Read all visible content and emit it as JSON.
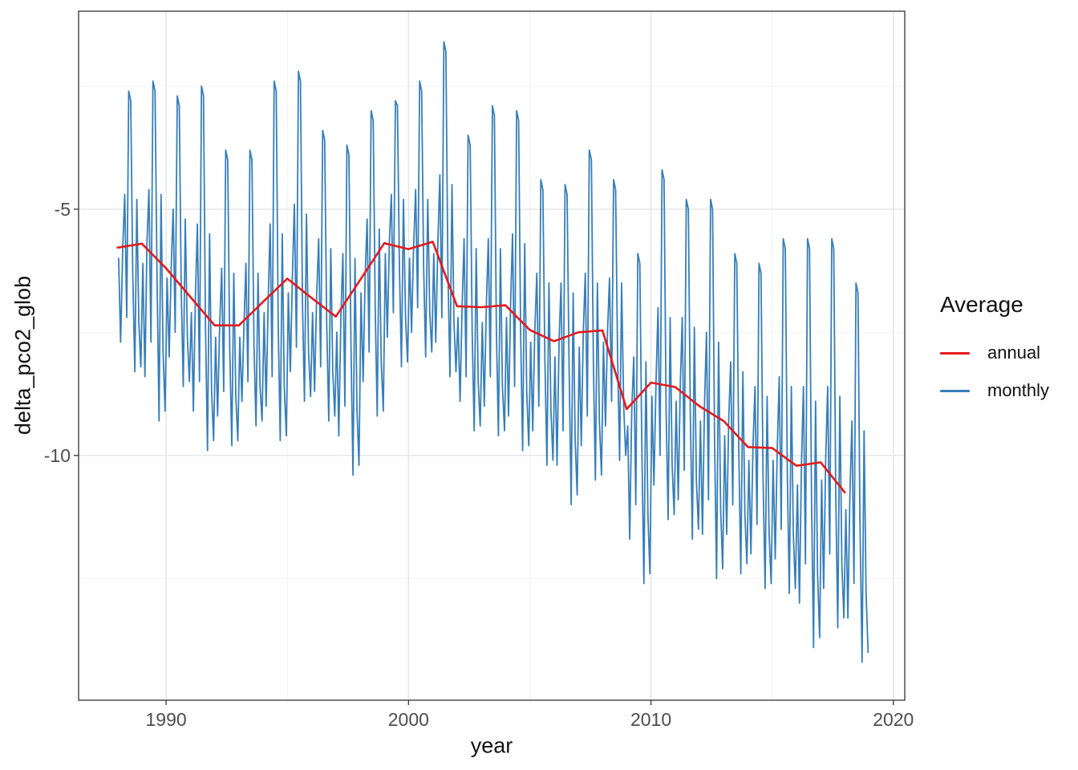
{
  "figure_background": "#FFFFFF",
  "axis_titles": {
    "x": "year",
    "y": "delta_pco2_glob"
  },
  "legend": {
    "title": "Average",
    "items": [
      {
        "label": "annual",
        "color": "#E41A1C"
      },
      {
        "label": "monthly",
        "color": "#377EB8"
      }
    ]
  },
  "colors": {
    "grid_major": "#E4E4E4",
    "grid_minor": "#F1F1F1",
    "panel_border": "#333333",
    "tick_mark": "#333333",
    "tick_label": "#4D4D4D",
    "annual_line": "#E41A1C",
    "monthly_line": "#377EB8"
  },
  "chart_data": {
    "type": "line",
    "title": "",
    "xlabel": "year",
    "ylabel": "delta_pco2_glob",
    "xlim": [
      1986.39,
      2020.47
    ],
    "ylim": [
      -14.97,
      -0.98
    ],
    "grid": "on",
    "legend_position": "right",
    "x_axis": {
      "major_ticks": [
        1990,
        2000,
        2010,
        2020
      ],
      "tick_labels": [
        "1990",
        "2000",
        "2010",
        "2020"
      ],
      "minor_gridlines": [
        1995,
        2005,
        2015
      ]
    },
    "y_axis": {
      "major_ticks": [
        -5,
        -10
      ],
      "tick_labels": [
        "-5",
        "-10"
      ],
      "minor_gridlines": [
        -2.5,
        -7.5,
        -12.5
      ]
    },
    "series": [
      {
        "name": "annual",
        "color": "#E41A1C",
        "line_width": 2.6,
        "years": [
          1988,
          1989,
          1990,
          1991,
          1992,
          1993,
          1994,
          1995,
          1996,
          1997,
          1998,
          1999,
          2000,
          2001,
          2002,
          2003,
          2004,
          2005,
          2006,
          2007,
          2008,
          2009,
          2010,
          2011,
          2012,
          2013,
          2014,
          2015,
          2016,
          2017,
          2018
        ],
        "values": [
          -5.78,
          -5.7,
          -6.2,
          -6.78,
          -7.36,
          -7.36,
          -6.88,
          -6.41,
          -6.8,
          -7.18,
          -6.44,
          -5.69,
          -5.81,
          -5.66,
          -6.97,
          -6.99,
          -6.95,
          -7.45,
          -7.68,
          -7.5,
          -7.46,
          -9.06,
          -8.52,
          -8.61,
          -9.0,
          -9.3,
          -9.83,
          -9.85,
          -10.21,
          -10.14,
          -10.75
        ]
      },
      {
        "name": "monthly",
        "color": "#377EB8",
        "line_width": 1.8,
        "months_per_year": 12,
        "monthly_by_year": {
          "1988": [
            -6.0,
            -7.7,
            -5.8,
            -4.7,
            -7.2,
            -2.6,
            -2.8,
            -6.3,
            -8.3,
            -4.8,
            -7.3,
            -8.2
          ],
          "1989": [
            -6.1,
            -8.4,
            -5.7,
            -4.6,
            -7.7,
            -2.4,
            -2.6,
            -6.4,
            -9.3,
            -4.7,
            -7.9,
            -9.1
          ],
          "1990": [
            -6.4,
            -8.0,
            -6.2,
            -5.0,
            -7.5,
            -2.7,
            -2.9,
            -6.7,
            -8.6,
            -5.2,
            -7.6,
            -8.5
          ],
          "1991": [
            -7.1,
            -9.1,
            -6.8,
            -5.3,
            -8.5,
            -2.5,
            -2.7,
            -7.4,
            -9.9,
            -5.5,
            -8.7,
            -9.7
          ],
          "1992": [
            -7.6,
            -9.2,
            -7.4,
            -6.2,
            -8.7,
            -3.8,
            -4.0,
            -7.8,
            -9.8,
            -6.3,
            -8.8,
            -9.7
          ],
          "1993": [
            -7.6,
            -8.9,
            -7.4,
            -6.1,
            -8.5,
            -3.8,
            -4.0,
            -7.8,
            -9.4,
            -6.3,
            -8.6,
            -9.3
          ],
          "1994": [
            -7.1,
            -9.0,
            -6.9,
            -5.3,
            -8.4,
            -2.4,
            -2.6,
            -7.4,
            -9.7,
            -5.5,
            -8.6,
            -9.6
          ],
          "1995": [
            -6.7,
            -8.3,
            -6.4,
            -4.9,
            -7.8,
            -2.2,
            -2.4,
            -6.9,
            -8.9,
            -5.1,
            -7.9,
            -8.8
          ],
          "1996": [
            -7.1,
            -8.7,
            -6.8,
            -5.6,
            -8.2,
            -3.4,
            -3.6,
            -7.3,
            -9.3,
            -5.8,
            -8.3,
            -9.2
          ],
          "1997": [
            -7.5,
            -9.6,
            -7.2,
            -5.9,
            -9.0,
            -3.7,
            -3.9,
            -7.8,
            -10.4,
            -6.0,
            -9.1,
            -10.2
          ],
          "1998": [
            -6.7,
            -8.5,
            -6.4,
            -5.2,
            -7.9,
            -3.0,
            -3.2,
            -7.0,
            -9.2,
            -5.4,
            -8.1,
            -9.1
          ],
          "1999": [
            -5.9,
            -7.6,
            -5.7,
            -4.7,
            -7.1,
            -2.8,
            -2.9,
            -6.2,
            -8.2,
            -4.8,
            -7.2,
            -8.1
          ],
          "2000": [
            -6.0,
            -7.5,
            -5.8,
            -4.6,
            -7.0,
            -2.4,
            -2.6,
            -6.2,
            -8.0,
            -4.8,
            -7.1,
            -7.9
          ],
          "2001": [
            -5.9,
            -7.7,
            -5.7,
            -4.3,
            -7.2,
            -1.6,
            -1.8,
            -6.2,
            -8.4,
            -4.5,
            -7.3,
            -8.3
          ],
          "2002": [
            -7.2,
            -8.9,
            -7.0,
            -5.6,
            -8.4,
            -3.5,
            -3.7,
            -7.5,
            -9.5,
            -5.8,
            -8.5,
            -9.4
          ],
          "2003": [
            -7.3,
            -9.0,
            -7.0,
            -5.6,
            -8.4,
            -2.9,
            -3.1,
            -7.5,
            -9.6,
            -5.8,
            -8.6,
            -9.5
          ],
          "2004": [
            -7.2,
            -9.2,
            -7.0,
            -5.5,
            -8.6,
            -3.0,
            -3.2,
            -7.5,
            -9.9,
            -5.7,
            -8.7,
            -9.8
          ],
          "2005": [
            -7.7,
            -9.5,
            -7.5,
            -6.3,
            -9.0,
            -4.4,
            -4.6,
            -8.0,
            -10.2,
            -6.5,
            -9.1,
            -10.1
          ],
          "2006": [
            -8.0,
            -10.2,
            -7.7,
            -6.5,
            -9.5,
            -4.5,
            -4.7,
            -8.3,
            -11.0,
            -6.7,
            -9.7,
            -10.8
          ],
          "2007": [
            -7.8,
            -9.8,
            -7.5,
            -6.3,
            -9.2,
            -3.8,
            -4.0,
            -8.1,
            -10.5,
            -6.5,
            -9.3,
            -10.4
          ],
          "2008": [
            -7.7,
            -9.4,
            -7.5,
            -6.4,
            -8.9,
            -4.4,
            -4.6,
            -8.0,
            -10.1,
            -6.5,
            -9.0,
            -10.0
          ],
          "2009": [
            -9.4,
            -11.7,
            -9.1,
            -8.0,
            -11.0,
            -5.9,
            -6.1,
            -9.8,
            -12.6,
            -8.1,
            -11.2,
            -12.4
          ],
          "2010": [
            -8.8,
            -10.6,
            -8.5,
            -7.0,
            -10.0,
            -4.2,
            -4.4,
            -9.1,
            -11.3,
            -7.2,
            -10.2,
            -11.2
          ],
          "2011": [
            -8.9,
            -10.9,
            -8.6,
            -7.2,
            -10.3,
            -4.8,
            -5.0,
            -9.2,
            -11.7,
            -7.4,
            -10.5,
            -11.5
          ],
          "2012": [
            -9.3,
            -11.6,
            -9.0,
            -7.5,
            -10.9,
            -4.8,
            -5.0,
            -9.7,
            -12.5,
            -7.7,
            -11.1,
            -12.3
          ],
          "2013": [
            -9.6,
            -11.6,
            -9.3,
            -8.1,
            -11.0,
            -5.9,
            -6.1,
            -9.9,
            -12.4,
            -8.3,
            -11.2,
            -12.2
          ],
          "2014": [
            -10.1,
            -12.0,
            -9.8,
            -8.6,
            -11.4,
            -6.1,
            -6.3,
            -10.4,
            -12.7,
            -8.8,
            -11.6,
            -12.6
          ],
          "2015": [
            -10.1,
            -12.1,
            -9.9,
            -8.4,
            -11.5,
            -5.6,
            -5.8,
            -10.4,
            -12.8,
            -8.6,
            -11.6,
            -12.7
          ],
          "2016": [
            -10.6,
            -13.0,
            -10.2,
            -8.6,
            -12.2,
            -5.6,
            -5.8,
            -10.9,
            -13.9,
            -8.9,
            -12.4,
            -13.7
          ],
          "2017": [
            -10.5,
            -12.7,
            -10.1,
            -8.6,
            -12.0,
            -5.6,
            -5.8,
            -10.8,
            -13.5,
            -8.8,
            -12.2,
            -13.3
          ],
          "2018": [
            -11.1,
            -13.3,
            -10.8,
            -9.3,
            -12.6,
            -6.5,
            -6.7,
            -11.4,
            -14.2,
            -9.5,
            -12.8,
            -14.0
          ]
        }
      }
    ]
  }
}
